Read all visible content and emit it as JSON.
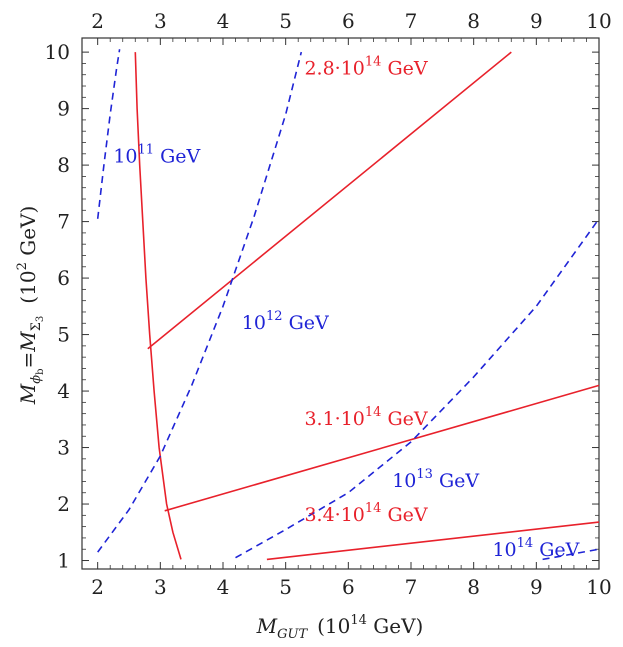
{
  "chart_data": {
    "type": "line",
    "xlabel": {
      "symbol": "M",
      "sub": "GUT",
      "unit_pre": "(10",
      "unit_exp": "14",
      "unit_post": " GeV)"
    },
    "ylabel": {
      "lhs": "M",
      "lhs_sub": "ϕ",
      "lhs_subsub": "b",
      "eq": "=",
      "rhs": "M",
      "rhs_sub": "Σ",
      "rhs_subsub": "3",
      "unit_pre": "(10",
      "unit_exp": "2",
      "unit_post": " GeV)"
    },
    "xlim": [
      1.75,
      10
    ],
    "ylim": [
      0.85,
      10.25
    ],
    "x_ticks": [
      "2",
      "3",
      "4",
      "5",
      "6",
      "7",
      "8",
      "9",
      "10"
    ],
    "y_ticks": [
      "1",
      "2",
      "3",
      "4",
      "5",
      "6",
      "7",
      "8",
      "9",
      "10"
    ],
    "colors": {
      "red": "#e8212b",
      "blue": "#1f24d6",
      "axis": "#333333"
    },
    "series": [
      {
        "name": "boundary",
        "color": "red",
        "style": "solid",
        "points": [
          [
            2.6,
            10
          ],
          [
            2.63,
            9
          ],
          [
            2.67,
            8
          ],
          [
            2.72,
            7
          ],
          [
            2.77,
            6
          ],
          [
            2.83,
            5
          ],
          [
            2.9,
            4
          ],
          [
            2.98,
            3
          ],
          [
            3.1,
            2
          ],
          [
            3.2,
            1.5
          ],
          [
            3.33,
            1.02
          ]
        ]
      },
      {
        "name": "2.8e14",
        "color": "red",
        "style": "solid",
        "points": [
          [
            2.8,
            4.75
          ],
          [
            8.6,
            10
          ]
        ]
      },
      {
        "name": "3.1e14",
        "color": "red",
        "style": "solid",
        "points": [
          [
            3.07,
            1.88
          ],
          [
            10,
            4.1
          ]
        ]
      },
      {
        "name": "3.4e14",
        "color": "red",
        "style": "solid",
        "points": [
          [
            4.7,
            1.02
          ],
          [
            10,
            1.68
          ]
        ]
      },
      {
        "name": "1e11",
        "color": "blue",
        "style": "dashed",
        "points": [
          [
            2,
            7.05
          ],
          [
            2.1,
            8
          ],
          [
            2.2,
            8.9
          ],
          [
            2.3,
            9.7
          ],
          [
            2.35,
            10.05
          ]
        ]
      },
      {
        "name": "1e12",
        "color": "blue",
        "style": "dashed",
        "points": [
          [
            2,
            1.15
          ],
          [
            2.5,
            1.9
          ],
          [
            3,
            2.85
          ],
          [
            3.5,
            4.1
          ],
          [
            4,
            5.5
          ],
          [
            4.5,
            7.1
          ],
          [
            5,
            8.9
          ],
          [
            5.25,
            10
          ]
        ]
      },
      {
        "name": "1e13",
        "color": "blue",
        "style": "dashed",
        "points": [
          [
            4.2,
            1.05
          ],
          [
            5,
            1.55
          ],
          [
            6,
            2.2
          ],
          [
            7,
            3.1
          ],
          [
            8,
            4.25
          ],
          [
            9,
            5.5
          ],
          [
            10,
            7.05
          ]
        ]
      },
      {
        "name": "1e14",
        "color": "blue",
        "style": "dashed",
        "points": [
          [
            9.1,
            1.02
          ],
          [
            9.5,
            1.1
          ],
          [
            10,
            1.2
          ]
        ]
      }
    ],
    "annotations": [
      {
        "color": "red",
        "pre": "2.8·10",
        "exp": "14",
        "post": " GeV",
        "at": [
          5.3,
          9.6
        ]
      },
      {
        "color": "blue",
        "pre": "10",
        "exp": "11",
        "post": " GeV",
        "at": [
          2.25,
          8.05
        ]
      },
      {
        "color": "blue",
        "pre": "10",
        "exp": "12",
        "post": " GeV",
        "at": [
          4.3,
          5.1
        ]
      },
      {
        "color": "red",
        "pre": "3.1·10",
        "exp": "14",
        "post": " GeV",
        "at": [
          5.3,
          3.4
        ]
      },
      {
        "color": "blue",
        "pre": "10",
        "exp": "13",
        "post": " GeV",
        "at": [
          6.7,
          2.3
        ]
      },
      {
        "color": "red",
        "pre": "3.4·10",
        "exp": "14",
        "post": " GeV",
        "at": [
          5.3,
          1.7
        ]
      },
      {
        "color": "blue",
        "pre": "10",
        "exp": "14",
        "post": " GeV",
        "at": [
          8.3,
          1.08
        ]
      }
    ]
  }
}
